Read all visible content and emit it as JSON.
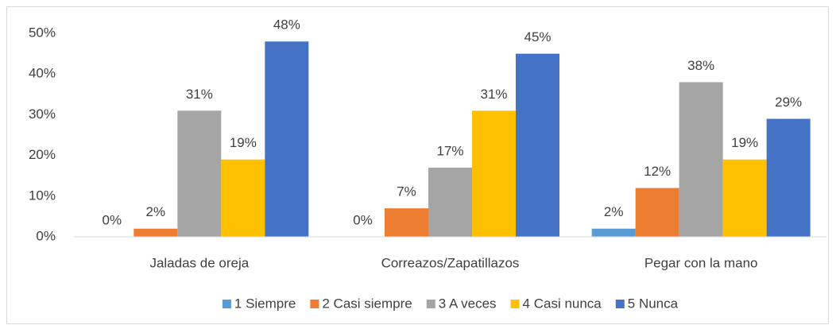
{
  "chart_data": {
    "type": "bar",
    "categories": [
      "Jaladas de oreja",
      "Correazos/Zapatillazos",
      "Pegar con la mano"
    ],
    "series": [
      {
        "name": "1 Siempre",
        "color": "#5b9bd5",
        "values": [
          0,
          0,
          2
        ],
        "value_labels": [
          "0%",
          "0%",
          "2%"
        ]
      },
      {
        "name": "2 Casi siempre",
        "color": "#ed7d31",
        "values": [
          2,
          7,
          12
        ],
        "value_labels": [
          "2%",
          "7%",
          "12%"
        ]
      },
      {
        "name": "3 A veces",
        "color": "#a5a5a5",
        "values": [
          31,
          17,
          38
        ],
        "value_labels": [
          "31%",
          "17%",
          "38%"
        ]
      },
      {
        "name": "4 Casi nunca",
        "color": "#ffc000",
        "values": [
          19,
          31,
          19
        ],
        "value_labels": [
          "19%",
          "31%",
          "19%"
        ]
      },
      {
        "name": "5 Nunca",
        "color": "#4472c4",
        "values": [
          48,
          45,
          29
        ],
        "value_labels": [
          "48%",
          "45%",
          "29%"
        ]
      }
    ],
    "ylim": [
      0,
      50
    ],
    "yticks": [
      {
        "value": 0,
        "label": "0%"
      },
      {
        "value": 10,
        "label": "10%"
      },
      {
        "value": 20,
        "label": "20%"
      },
      {
        "value": 30,
        "label": "30%"
      },
      {
        "value": 40,
        "label": "40%"
      },
      {
        "value": 50,
        "label": "50%"
      }
    ],
    "grid": false,
    "legend": "bottom"
  }
}
